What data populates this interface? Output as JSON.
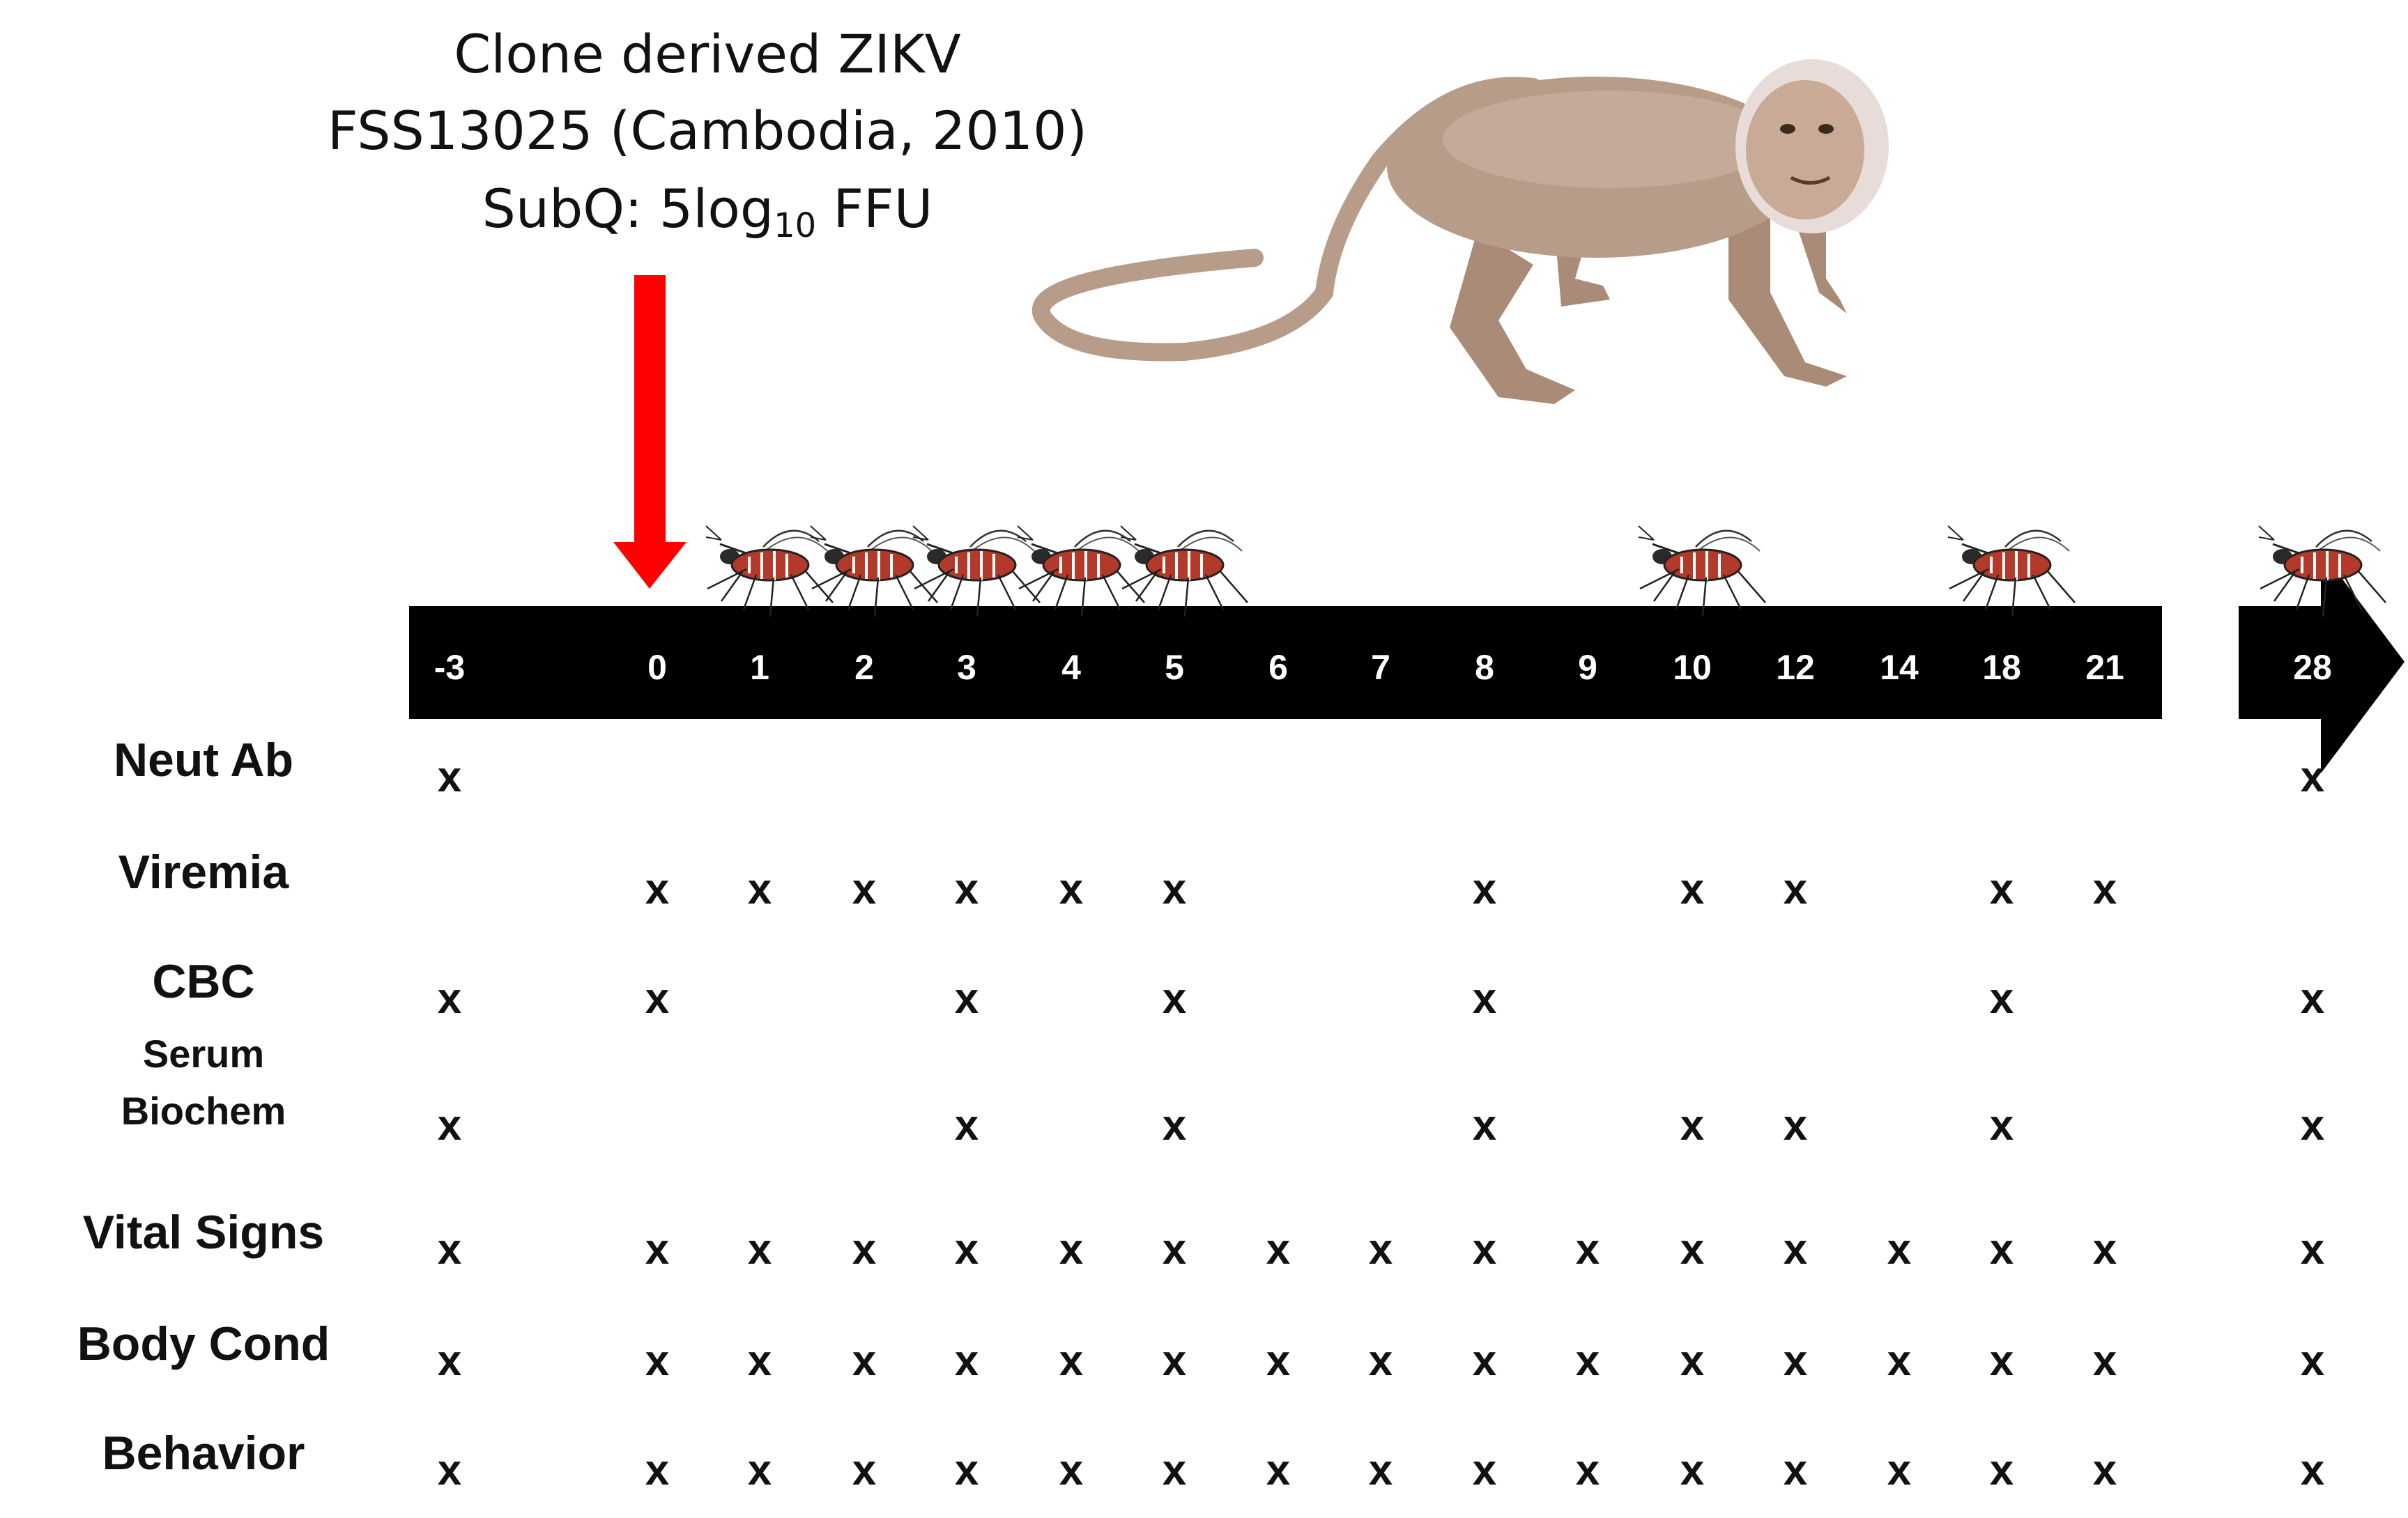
{
  "header": {
    "line1": "Clone derived ZIKV",
    "line2": "FSS13025 (Cambodia, 2010)",
    "line3_prefix": "SubQ: 5log",
    "line3_sub": "10",
    "line3_suffix": " FFU"
  },
  "timeline": {
    "days": [
      "-3",
      "0",
      "1",
      "2",
      "3",
      "4",
      "5",
      "6",
      "7",
      "8",
      "9",
      "10",
      "12",
      "14",
      "18",
      "21",
      "28"
    ],
    "mosquito_days": [
      "1",
      "2",
      "3",
      "4",
      "5",
      "10",
      "18",
      "28"
    ],
    "inoculation_day": "0"
  },
  "rows": [
    {
      "label": "Neut Ab",
      "days": [
        "-3",
        "28"
      ]
    },
    {
      "label": "Viremia",
      "days": [
        "0",
        "1",
        "2",
        "3",
        "4",
        "5",
        "8",
        "10",
        "12",
        "18",
        "21"
      ]
    },
    {
      "label": "CBC",
      "days": [
        "-3",
        "0",
        "3",
        "5",
        "8",
        "18",
        "28"
      ]
    },
    {
      "label": "Serum\nBiochem",
      "days": [
        "-3",
        "3",
        "5",
        "8",
        "10",
        "12",
        "18",
        "28"
      ]
    },
    {
      "label": "Vital Signs",
      "days": [
        "-3",
        "0",
        "1",
        "2",
        "3",
        "4",
        "5",
        "6",
        "7",
        "8",
        "9",
        "10",
        "12",
        "14",
        "18",
        "21",
        "28"
      ]
    },
    {
      "label": "Body Cond",
      "days": [
        "-3",
        "0",
        "1",
        "2",
        "3",
        "4",
        "5",
        "6",
        "7",
        "8",
        "9",
        "10",
        "12",
        "14",
        "18",
        "21",
        "28"
      ]
    },
    {
      "label": "Behavior",
      "days": [
        "-3",
        "0",
        "1",
        "2",
        "3",
        "4",
        "5",
        "6",
        "7",
        "8",
        "9",
        "10",
        "12",
        "14",
        "18",
        "21",
        "28"
      ]
    }
  ],
  "mark": "x",
  "colors": {
    "arrow": "#ff0000",
    "timeline": "#000000",
    "text": "#111111",
    "monkey": "#b89c8a",
    "mosquito_body": "#b33a2a"
  },
  "icons": {
    "inoculation": "red-down-arrow-icon",
    "host": "monkey-icon",
    "vector": "mosquito-icon"
  }
}
